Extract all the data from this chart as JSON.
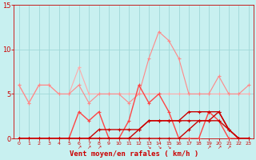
{
  "x": [
    0,
    1,
    2,
    3,
    4,
    5,
    6,
    7,
    8,
    9,
    10,
    11,
    12,
    13,
    14,
    15,
    16,
    17,
    18,
    19,
    20,
    21,
    22,
    23
  ],
  "line_pink_light": [
    6,
    4,
    6,
    6,
    5,
    5,
    8,
    5,
    5,
    5,
    5,
    5,
    5,
    5,
    5,
    5,
    5,
    5,
    5,
    5,
    5,
    5,
    5,
    5
  ],
  "line_pink_med": [
    6,
    4,
    6,
    6,
    5,
    5,
    6,
    4,
    5,
    5,
    5,
    4,
    5,
    9,
    12,
    11,
    9,
    5,
    5,
    5,
    7,
    5,
    5,
    6
  ],
  "line_red_light": [
    0,
    0,
    0,
    0,
    0,
    0,
    3,
    2,
    3,
    0,
    0,
    2,
    6,
    4,
    5,
    3,
    0,
    0,
    0,
    3,
    2,
    0,
    0,
    0
  ],
  "line_red_dark1": [
    0,
    0,
    0,
    0,
    0,
    0,
    0,
    0,
    0,
    0,
    0,
    0,
    1,
    2,
    2,
    2,
    2,
    3,
    3,
    3,
    3,
    1,
    0,
    0
  ],
  "line_red_dark2": [
    0,
    0,
    0,
    0,
    0,
    0,
    0,
    0,
    0,
    0,
    0,
    0,
    0,
    0,
    0,
    0,
    0,
    1,
    2,
    2,
    3,
    1,
    0,
    0
  ],
  "line_red_dark3": [
    0,
    0,
    0,
    0,
    0,
    0,
    0,
    0,
    1,
    1,
    1,
    1,
    1,
    2,
    2,
    2,
    2,
    2,
    2,
    2,
    2,
    1,
    0,
    0
  ],
  "background_color": "#c8f0f0",
  "grid_color": "#a0d8d8",
  "line_pink_light_color": "#ffaaaa",
  "line_pink_med_color": "#ff8888",
  "line_red_light_color": "#ff4444",
  "line_red_dark_color": "#cc0000",
  "xlabel": "Vent moyen/en rafales ( km/h )",
  "xlabel_color": "#cc0000",
  "tick_color": "#cc0000",
  "arrow_ups": [
    6,
    7,
    8
  ],
  "arrow_downs": [
    13,
    14,
    15
  ],
  "arrow_ups2": [
    19,
    20,
    21
  ],
  "ylim": [
    0,
    15
  ],
  "xlim": [
    -0.5,
    23.5
  ]
}
